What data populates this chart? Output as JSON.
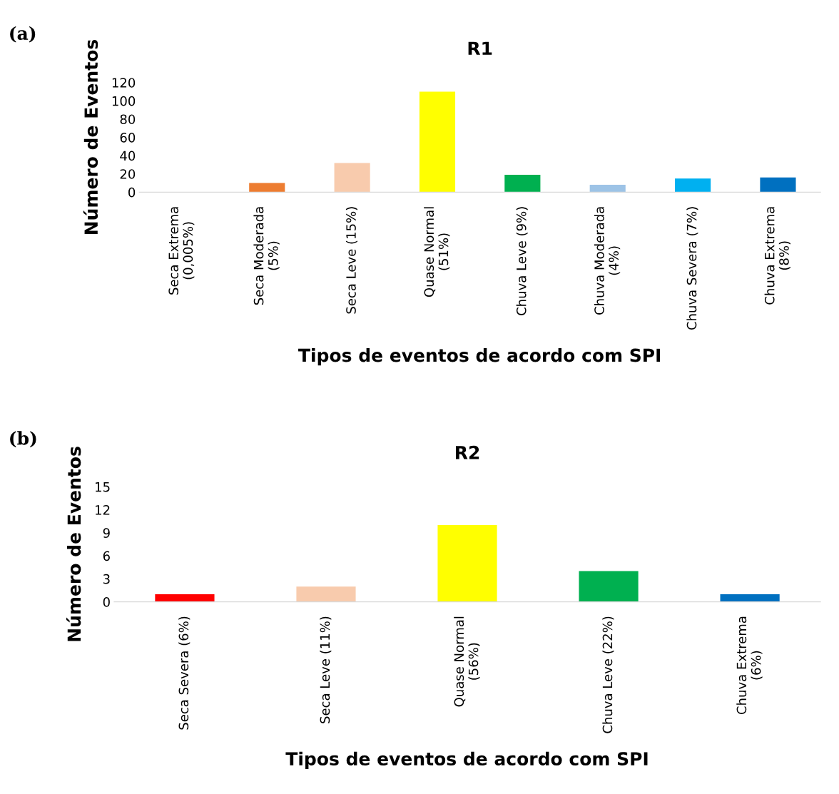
{
  "chart_data": [
    {
      "type": "bar",
      "title": "R1",
      "xlabel": "Tipos de eventos de acordo com SPI",
      "ylabel": "Número de Eventos",
      "annotations": [
        "(a)"
      ],
      "categories": [
        "Seca Extrema\n(0,005%)",
        "Seca Moderada\n(5%)",
        "Seca Leve (15%)",
        "Quase Normal\n(51%)",
        "Chuva Leve (9%)",
        "Chuva Moderada\n(4%)",
        "Chuva Severa (7%)",
        "Chuva Extrema\n(8%)"
      ],
      "values": [
        0,
        10,
        32,
        110,
        19,
        8,
        15,
        16
      ],
      "colors": [
        "#c00000",
        "#ed7d31",
        "#f8cbad",
        "#ffff00",
        "#00b050",
        "#9dc3e6",
        "#00b0f0",
        "#0070c0"
      ],
      "ylim": [
        0,
        120
      ],
      "yticks": [
        0,
        20,
        40,
        60,
        80,
        100,
        120
      ],
      "grid": false,
      "legend": false
    },
    {
      "type": "bar",
      "title": "R2",
      "xlabel": "Tipos de eventos de acordo com SPI",
      "ylabel": "Número de Eventos",
      "annotations": [
        "(b)"
      ],
      "categories": [
        "Seca Severa (6%)",
        "Seca Leve (11%)",
        "Quase Normal\n(56%)",
        "Chuva Leve (22%)",
        "Chuva Extrema\n(6%)"
      ],
      "values": [
        1,
        2,
        10,
        4,
        1
      ],
      "colors": [
        "#ff0000",
        "#f8cbad",
        "#ffff00",
        "#00b050",
        "#0070c0"
      ],
      "ylim": [
        0,
        15
      ],
      "yticks": [
        0,
        3,
        6,
        9,
        12,
        15
      ],
      "grid": false,
      "legend": false
    }
  ]
}
